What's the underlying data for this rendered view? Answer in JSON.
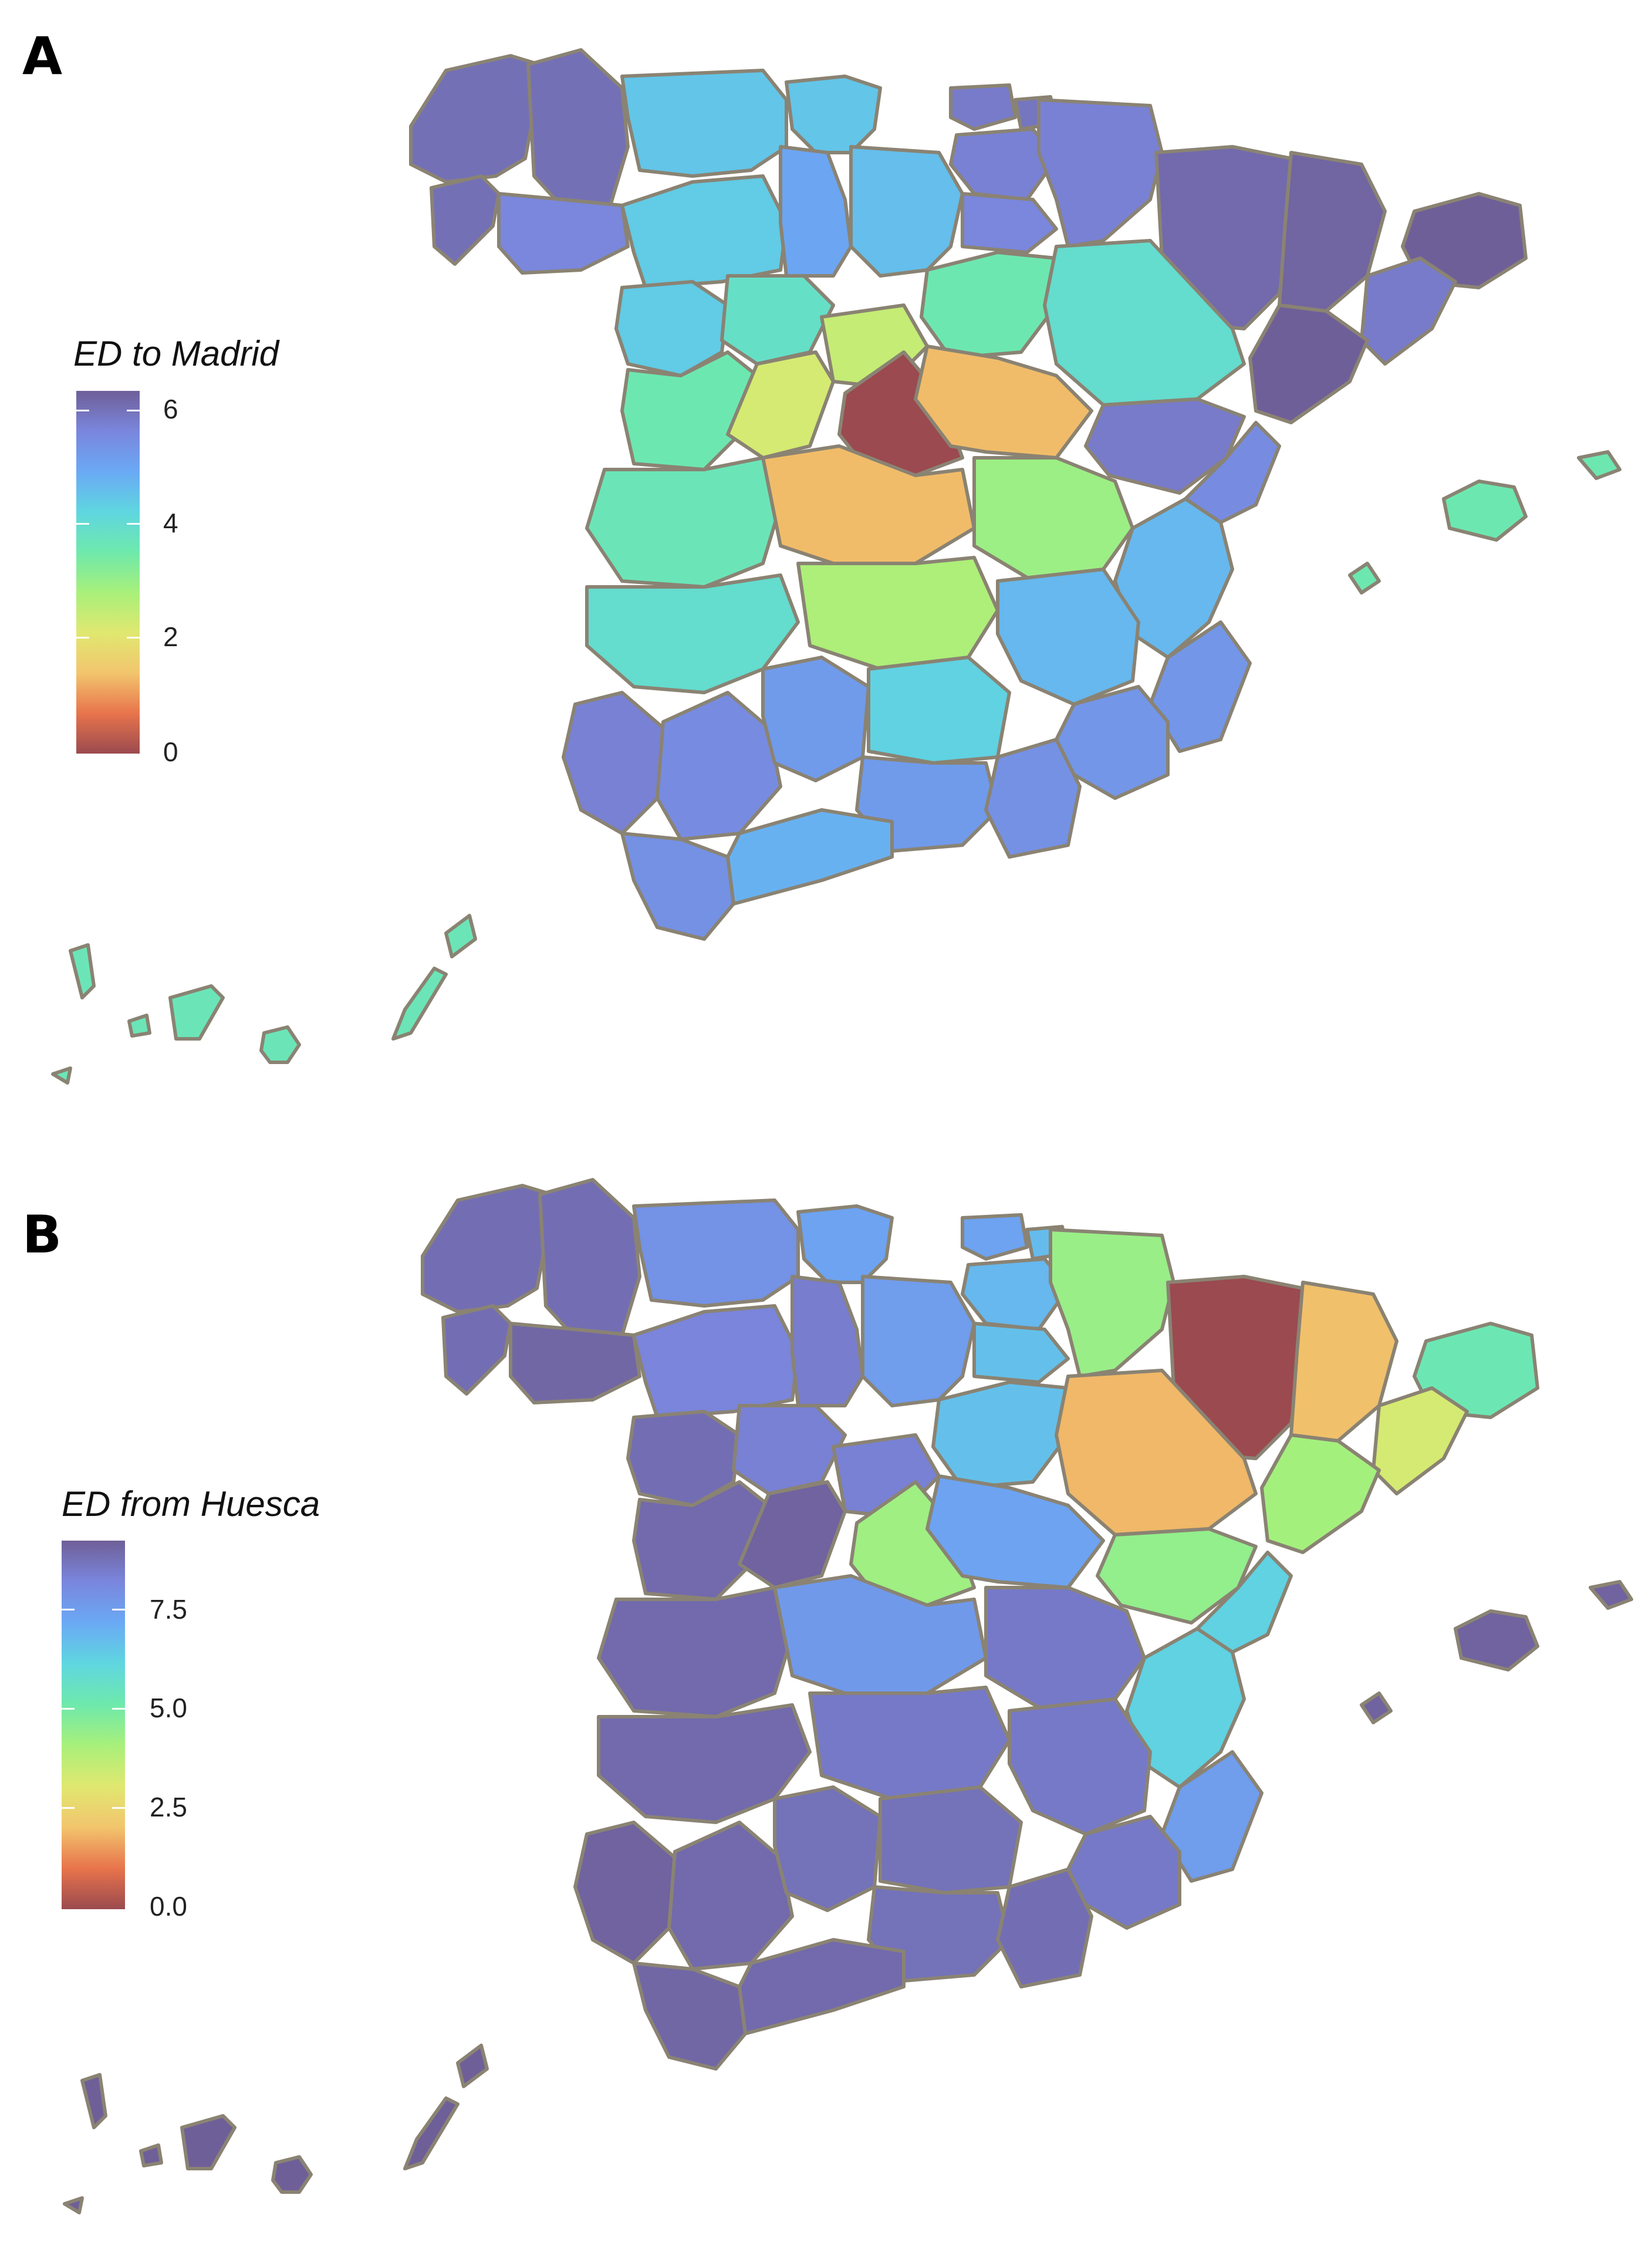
{
  "figure": {
    "panel_a": {
      "letter": "A",
      "legend_title": "ED to Madrid",
      "legend_ticks": [
        "6",
        "4",
        "2",
        "0"
      ],
      "scale": {
        "min": 0,
        "max": 6.2
      },
      "regions": [
        {
          "id": "a-coruna",
          "v": 5.9
        },
        {
          "id": "lugo",
          "v": 5.9
        },
        {
          "id": "pontevedra",
          "v": 5.9
        },
        {
          "id": "ourense",
          "v": 5.5
        },
        {
          "id": "asturias",
          "v": 4.4
        },
        {
          "id": "cantabria",
          "v": 4.4
        },
        {
          "id": "bizkaia",
          "v": 5.7
        },
        {
          "id": "gipuzkoa",
          "v": 5.8
        },
        {
          "id": "araba",
          "v": 5.6
        },
        {
          "id": "navarra",
          "v": 5.6
        },
        {
          "id": "huesca",
          "v": 6.0
        },
        {
          "id": "girona",
          "v": 6.2
        },
        {
          "id": "leon",
          "v": 4.3
        },
        {
          "id": "palencia",
          "v": 4.9
        },
        {
          "id": "burgos",
          "v": 4.5
        },
        {
          "id": "la-rioja",
          "v": 5.5
        },
        {
          "id": "lleida",
          "v": 6.1
        },
        {
          "id": "barcelona",
          "v": 5.7
        },
        {
          "id": "zamora",
          "v": 4.3
        },
        {
          "id": "valladolid",
          "v": 3.8
        },
        {
          "id": "soria",
          "v": 3.5
        },
        {
          "id": "zaragoza",
          "v": 3.9
        },
        {
          "id": "tarragona",
          "v": 6.2
        },
        {
          "id": "salamanca",
          "v": 3.5
        },
        {
          "id": "avila",
          "v": 2.2
        },
        {
          "id": "segovia",
          "v": 2.4
        },
        {
          "id": "madrid",
          "v": 0.0
        },
        {
          "id": "guadalajara",
          "v": 1.3
        },
        {
          "id": "teruel",
          "v": 5.7
        },
        {
          "id": "castellon",
          "v": 5.4
        },
        {
          "id": "caceres",
          "v": 3.6
        },
        {
          "id": "toledo",
          "v": 1.3
        },
        {
          "id": "cuenca",
          "v": 2.9
        },
        {
          "id": "valencia",
          "v": 4.6
        },
        {
          "id": "badajoz",
          "v": 3.9
        },
        {
          "id": "ciudad-real",
          "v": 2.7
        },
        {
          "id": "albacete",
          "v": 4.6
        },
        {
          "id": "alicante",
          "v": 5.2
        },
        {
          "id": "huelva",
          "v": 5.6
        },
        {
          "id": "sevilla",
          "v": 5.4
        },
        {
          "id": "cordoba",
          "v": 5.1
        },
        {
          "id": "jaen",
          "v": 4.2
        },
        {
          "id": "granada",
          "v": 5.1
        },
        {
          "id": "murcia",
          "v": 5.2
        },
        {
          "id": "almeria",
          "v": 5.3
        },
        {
          "id": "cadiz",
          "v": 5.3
        },
        {
          "id": "malaga",
          "v": 4.7
        },
        {
          "id": "baleares",
          "v": 3.5
        },
        {
          "id": "canarias",
          "v": 3.6
        }
      ]
    },
    "panel_b": {
      "letter": "B",
      "legend_title": "ED from Huesca",
      "legend_ticks": [
        "7.5",
        "5.0",
        "2.5",
        "0.0"
      ],
      "scale": {
        "min": 0,
        "max": 9.3
      },
      "regions": [
        {
          "id": "a-coruna",
          "v": 8.9
        },
        {
          "id": "lugo",
          "v": 8.9
        },
        {
          "id": "pontevedra",
          "v": 8.9
        },
        {
          "id": "ourense",
          "v": 9.1
        },
        {
          "id": "asturias",
          "v": 7.9
        },
        {
          "id": "cantabria",
          "v": 7.4
        },
        {
          "id": "bizkaia",
          "v": 7.4
        },
        {
          "id": "gipuzkoa",
          "v": 6.8
        },
        {
          "id": "araba",
          "v": 6.9
        },
        {
          "id": "navarra",
          "v": 4.4
        },
        {
          "id": "huesca",
          "v": 0.0
        },
        {
          "id": "girona",
          "v": 5.3
        },
        {
          "id": "leon",
          "v": 8.3
        },
        {
          "id": "palencia",
          "v": 8.5
        },
        {
          "id": "burgos",
          "v": 7.6
        },
        {
          "id": "la-rioja",
          "v": 6.7
        },
        {
          "id": "lleida",
          "v": 2.0
        },
        {
          "id": "barcelona",
          "v": 3.3
        },
        {
          "id": "zamora",
          "v": 8.9
        },
        {
          "id": "valladolid",
          "v": 8.4
        },
        {
          "id": "soria",
          "v": 6.7
        },
        {
          "id": "zaragoza",
          "v": 1.9
        },
        {
          "id": "tarragona",
          "v": 4.2
        },
        {
          "id": "salamanca",
          "v": 9.0
        },
        {
          "id": "avila",
          "v": 9.2
        },
        {
          "id": "segovia",
          "v": 8.4
        },
        {
          "id": "madrid",
          "v": 4.3
        },
        {
          "id": "guadalajara",
          "v": 7.4
        },
        {
          "id": "teruel",
          "v": 4.5
        },
        {
          "id": "castellon",
          "v": 6.3
        },
        {
          "id": "caceres",
          "v": 9.0
        },
        {
          "id": "toledo",
          "v": 7.7
        },
        {
          "id": "cuenca",
          "v": 8.6
        },
        {
          "id": "valencia",
          "v": 6.3
        },
        {
          "id": "badajoz",
          "v": 9.0
        },
        {
          "id": "ciudad-real",
          "v": 8.6
        },
        {
          "id": "albacete",
          "v": 8.6
        },
        {
          "id": "alicante",
          "v": 7.6
        },
        {
          "id": "huelva",
          "v": 9.2
        },
        {
          "id": "sevilla",
          "v": 9.0
        },
        {
          "id": "cordoba",
          "v": 8.8
        },
        {
          "id": "jaen",
          "v": 8.8
        },
        {
          "id": "granada",
          "v": 8.8
        },
        {
          "id": "murcia",
          "v": 8.6
        },
        {
          "id": "almeria",
          "v": 8.9
        },
        {
          "id": "cadiz",
          "v": 9.1
        },
        {
          "id": "malaga",
          "v": 9.0
        },
        {
          "id": "baleares",
          "v": 9.2
        },
        {
          "id": "canarias",
          "v": 9.3
        }
      ]
    },
    "colors": {
      "ramp": [
        "#9b4a4f",
        "#e8744c",
        "#f2c56d",
        "#e0e870",
        "#a8f07a",
        "#6ee9ac",
        "#5fd6e0",
        "#6aa9f5",
        "#7a86dd",
        "#6f5f98"
      ],
      "border": "#8a8373"
    }
  }
}
